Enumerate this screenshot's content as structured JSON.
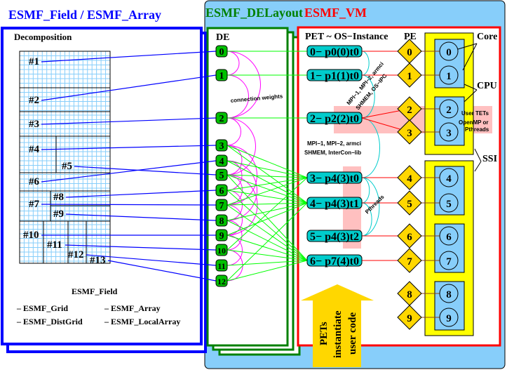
{
  "titles": {
    "field_array": "ESMF_Field / ESMF_Array",
    "delayout": "ESMF_DELayout",
    "vm": "ESMF_VM"
  },
  "colors": {
    "field": "#0000ff",
    "delayout": "#008000",
    "vm": "#ff0000",
    "vm_bg": "#87cefa",
    "de_node": "#00c000",
    "pet_node": "#00cccc",
    "pe": "#ffd700",
    "ssi": "#ffff00",
    "core": "#87cefa",
    "pink": "#ffc0c0",
    "weights": "#ff00ff"
  },
  "field": {
    "decomposition_label": "Decomposition",
    "blocks": [
      "#1",
      "#2",
      "#3",
      "#4",
      "#5",
      "#6",
      "#7",
      "#8",
      "#9",
      "#10",
      "#11",
      "#12",
      "#13"
    ],
    "caption": "ESMF_Field",
    "list": [
      "– ESMF_Grid",
      "– ESMF_Array",
      "– ESMF_DistGrid",
      "– ESMF_LocalArray"
    ]
  },
  "delayout": {
    "header": "DE",
    "des": [
      "0",
      "1",
      "2",
      "3",
      "4",
      "5",
      "6",
      "7",
      "8",
      "9",
      "10",
      "11",
      "12"
    ],
    "weights_label": "connection weights"
  },
  "vm": {
    "pet_header": "PET ~ OS−Instance",
    "pe_header": "PE",
    "pets": [
      "0− p0(0)t0",
      "1− p1(1)t0",
      "2− p2(2)t0",
      "3− p4(3)t0",
      "4− p4(3)t1",
      "5− p4(3)t2",
      "6− p7(4)t0"
    ],
    "pes": [
      "0",
      "1",
      "2",
      "3",
      "4",
      "5",
      "6",
      "7",
      "8",
      "9"
    ],
    "cores": [
      "0",
      "1",
      "2",
      "3",
      "4",
      "5",
      "6",
      "7",
      "8",
      "9"
    ],
    "core_label": "Core",
    "cpu_label": "CPU",
    "ssi_label": "SSI",
    "user_tets": [
      "User TETs",
      "OpenMP or",
      "Pthreads"
    ],
    "ipc_rotated": [
      "MPI−1, MPI−2, armci",
      "SHMEM, OS−IPC"
    ],
    "interconn": [
      "MPI−1, MPI−2, armci",
      "SHMEM, InterCon−lib"
    ],
    "pthreads_label": "Pthreads",
    "arrow_text": [
      "PETs",
      "instantiate",
      "user code"
    ]
  }
}
